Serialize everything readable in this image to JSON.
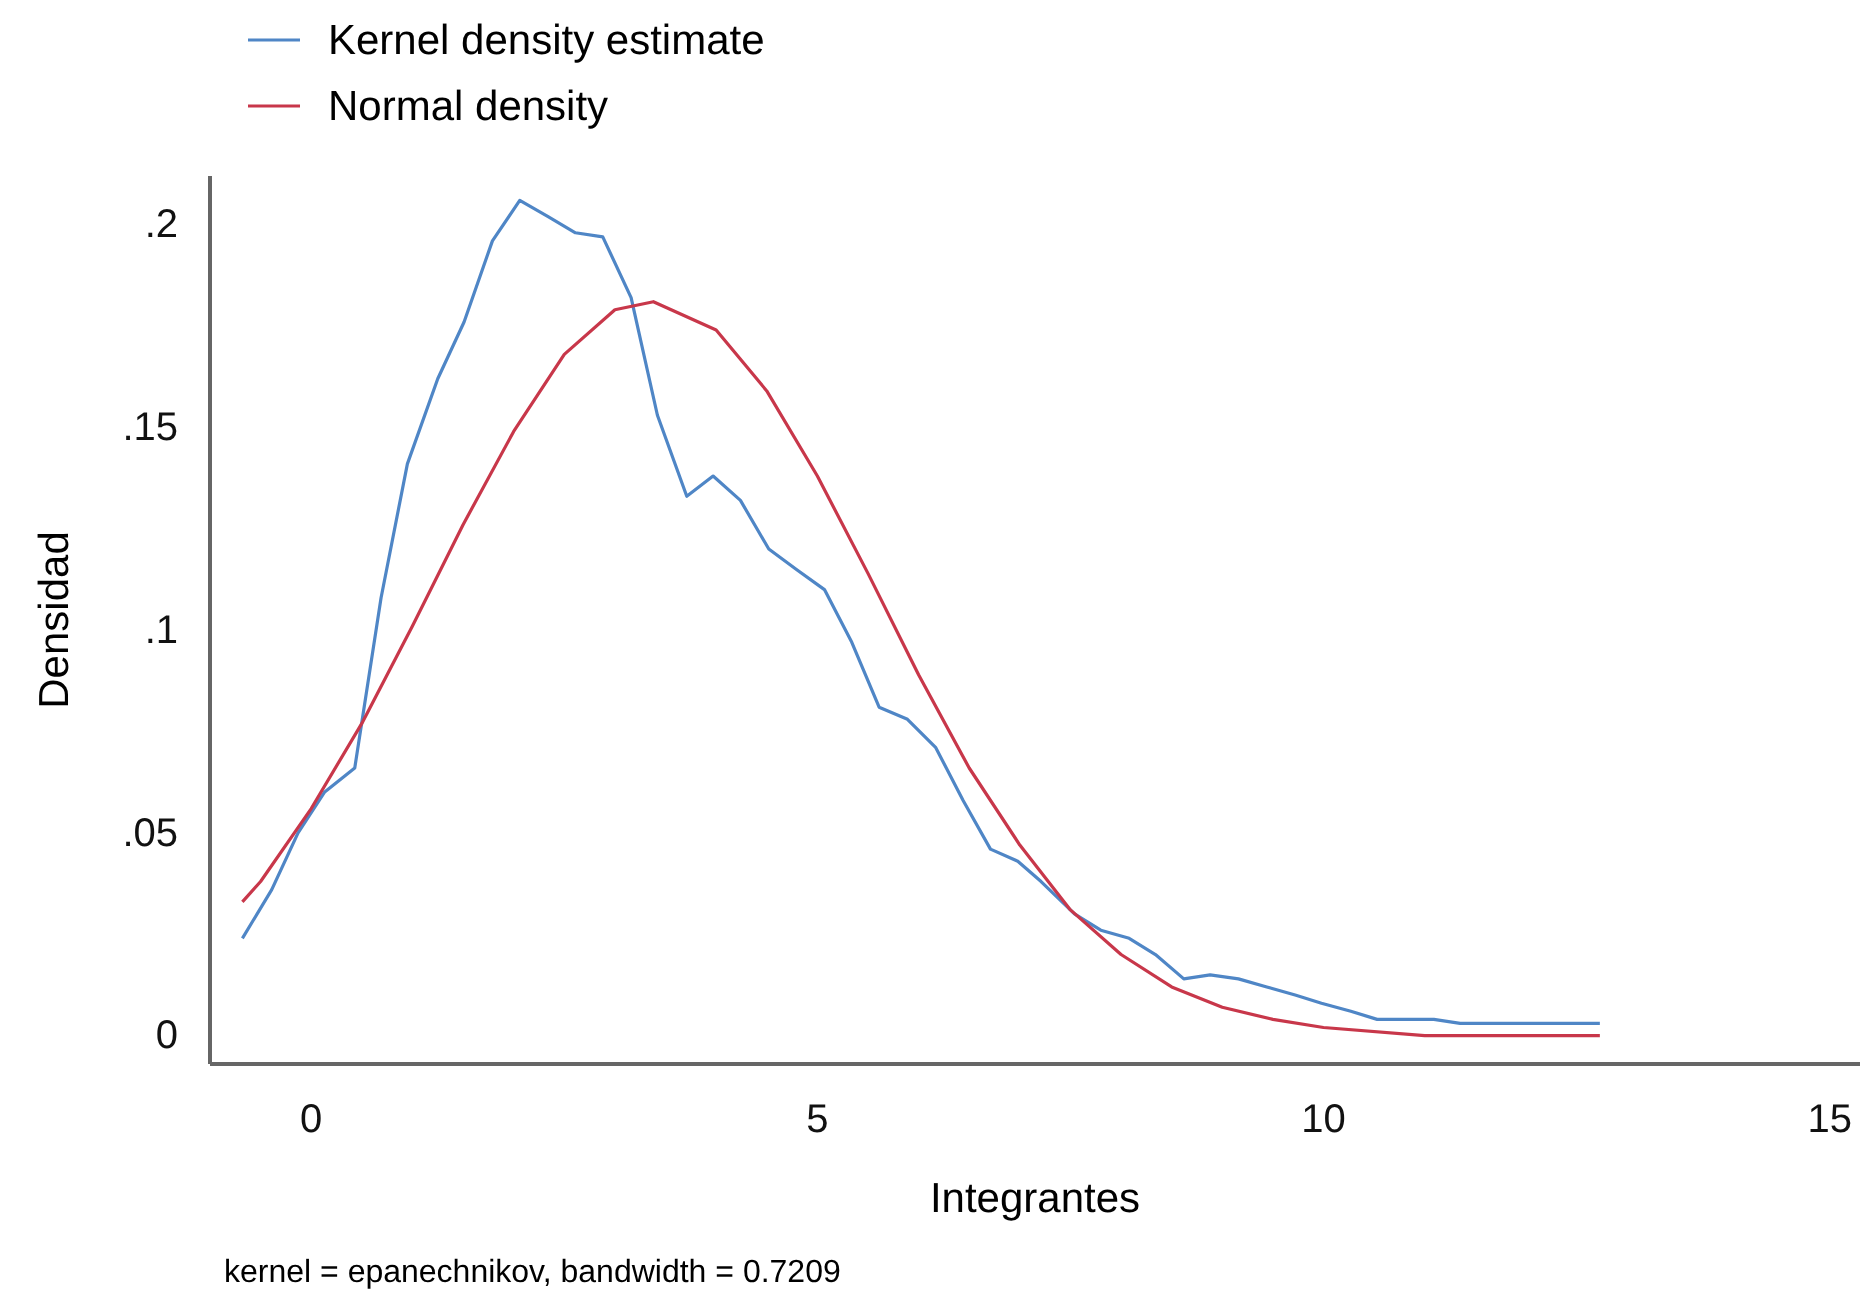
{
  "chart_data": {
    "type": "line",
    "xlabel": "Integrantes",
    "ylabel": "Densidad",
    "annotations": [
      "kernel = epanechnikov, bandwidth = 0.7209"
    ],
    "xlim": [
      -1,
      15.3
    ],
    "ylim": [
      -0.007,
      0.212
    ],
    "xticks": [
      0,
      5,
      10,
      15
    ],
    "yticks": [
      0,
      {
        "value": 0.05,
        "label": ".05"
      },
      {
        "value": 0.1,
        "label": ".1"
      },
      {
        "value": 0.15,
        "label": ".15"
      },
      {
        "value": 0.2,
        "label": ".2"
      }
    ],
    "legend": "top",
    "grid": false,
    "marker": "none",
    "line_style": "solid",
    "series": [
      {
        "name": "Kernel density estimate",
        "color": "#4f86c6",
        "x": [
          -0.68,
          -0.39,
          -0.13,
          0.13,
          0.43,
          0.69,
          0.95,
          1.25,
          1.51,
          1.79,
          2.06,
          2.34,
          2.61,
          2.88,
          3.16,
          3.42,
          3.71,
          3.97,
          4.24,
          4.52,
          4.79,
          5.07,
          5.34,
          5.61,
          5.89,
          6.17,
          6.44,
          6.71,
          6.98,
          7.21,
          7.54,
          7.8,
          8.08,
          8.34,
          8.62,
          8.88,
          9.16,
          9.44,
          9.72,
          9.98,
          10.27,
          10.53,
          10.83,
          11.09,
          11.35,
          11.65,
          11.91,
          12.18,
          12.47,
          12.73
        ],
        "values": [
          0.024,
          0.036,
          0.05,
          0.06,
          0.066,
          0.108,
          0.141,
          0.162,
          0.176,
          0.196,
          0.206,
          0.202,
          0.198,
          0.197,
          0.182,
          0.153,
          0.133,
          0.138,
          0.132,
          0.12,
          0.115,
          0.11,
          0.097,
          0.081,
          0.078,
          0.071,
          0.058,
          0.046,
          0.043,
          0.038,
          0.03,
          0.026,
          0.024,
          0.02,
          0.014,
          0.015,
          0.014,
          0.012,
          0.01,
          0.008,
          0.006,
          0.004,
          0.004,
          0.004,
          0.003,
          0.003,
          0.003,
          0.003,
          0.003,
          0.003
        ]
      },
      {
        "name": "Normal density",
        "color": "#c8374a",
        "x": [
          -0.68,
          -0.5,
          0,
          0.5,
          1,
          1.5,
          2,
          2.5,
          3,
          3.38,
          4,
          4.5,
          5,
          5.5,
          6,
          6.5,
          7,
          7.5,
          8,
          8.5,
          9,
          9.5,
          10,
          11,
          12,
          12.73
        ],
        "values": [
          0.033,
          0.038,
          0.056,
          0.077,
          0.101,
          0.126,
          0.149,
          0.168,
          0.179,
          0.181,
          0.174,
          0.159,
          0.138,
          0.114,
          0.089,
          0.066,
          0.047,
          0.031,
          0.02,
          0.012,
          0.007,
          0.004,
          0.002,
          0,
          0,
          0
        ]
      }
    ]
  }
}
